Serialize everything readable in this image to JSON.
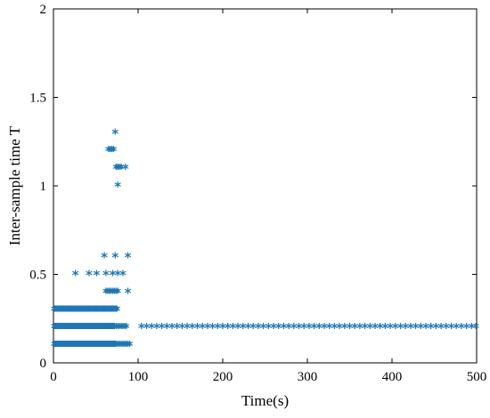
{
  "chart_data": {
    "type": "scatter",
    "xlabel": "Time(s)",
    "ylabel": "Inter-sample time T",
    "xlim": [
      0,
      500
    ],
    "ylim": [
      0,
      2
    ],
    "xticks": [
      "0",
      "100",
      "200",
      "300",
      "400",
      "500"
    ],
    "yticks": [
      "0",
      "0.5",
      "1",
      "1.5",
      "2"
    ],
    "grid": false,
    "marker": "*",
    "color": "#1f77b4",
    "series": [
      {
        "points": [
          [
            1,
            0.1
          ],
          [
            2,
            0.1
          ],
          [
            3,
            0.1
          ],
          [
            4,
            0.1
          ],
          [
            5,
            0.1
          ],
          [
            6,
            0.1
          ],
          [
            7,
            0.1
          ],
          [
            8,
            0.1
          ],
          [
            9,
            0.1
          ],
          [
            10,
            0.1
          ],
          [
            11,
            0.1
          ],
          [
            12,
            0.1
          ],
          [
            13,
            0.1
          ],
          [
            14,
            0.1
          ],
          [
            15,
            0.1
          ],
          [
            16,
            0.1
          ],
          [
            17,
            0.1
          ],
          [
            18,
            0.1
          ],
          [
            19,
            0.1
          ],
          [
            20,
            0.1
          ],
          [
            21,
            0.1
          ],
          [
            22,
            0.1
          ],
          [
            23,
            0.1
          ],
          [
            24,
            0.1
          ],
          [
            25,
            0.1
          ],
          [
            26,
            0.1
          ],
          [
            27,
            0.1
          ],
          [
            28,
            0.1
          ],
          [
            29,
            0.1
          ],
          [
            30,
            0.1
          ],
          [
            31,
            0.1
          ],
          [
            32,
            0.1
          ],
          [
            33,
            0.1
          ],
          [
            34,
            0.1
          ],
          [
            35,
            0.1
          ],
          [
            36,
            0.1
          ],
          [
            37,
            0.1
          ],
          [
            38,
            0.1
          ],
          [
            39,
            0.1
          ],
          [
            40,
            0.1
          ],
          [
            41,
            0.1
          ],
          [
            42,
            0.1
          ],
          [
            43,
            0.1
          ],
          [
            44,
            0.1
          ],
          [
            45,
            0.1
          ],
          [
            46,
            0.1
          ],
          [
            47,
            0.1
          ],
          [
            48,
            0.1
          ],
          [
            49,
            0.1
          ],
          [
            50,
            0.1
          ],
          [
            51,
            0.1
          ],
          [
            52,
            0.1
          ],
          [
            53,
            0.1
          ],
          [
            54,
            0.1
          ],
          [
            55,
            0.1
          ],
          [
            56,
            0.1
          ],
          [
            57,
            0.1
          ],
          [
            58,
            0.1
          ],
          [
            59,
            0.1
          ],
          [
            60,
            0.1
          ],
          [
            61,
            0.1
          ],
          [
            62,
            0.1
          ],
          [
            63,
            0.1
          ],
          [
            64,
            0.1
          ],
          [
            65,
            0.1
          ],
          [
            66,
            0.1
          ],
          [
            67,
            0.1
          ],
          [
            68,
            0.1
          ],
          [
            69,
            0.1
          ],
          [
            70,
            0.1
          ],
          [
            71,
            0.1
          ],
          [
            72,
            0.1
          ],
          [
            73,
            0.1
          ],
          [
            74,
            0.1
          ],
          [
            76,
            0.1
          ],
          [
            78,
            0.1
          ],
          [
            80,
            0.1
          ],
          [
            82,
            0.1
          ],
          [
            84,
            0.1
          ],
          [
            86,
            0.1
          ],
          [
            88,
            0.1
          ],
          [
            90,
            0.1
          ],
          [
            1,
            0.2
          ],
          [
            2,
            0.2
          ],
          [
            3,
            0.2
          ],
          [
            4,
            0.2
          ],
          [
            5,
            0.2
          ],
          [
            6,
            0.2
          ],
          [
            7,
            0.2
          ],
          [
            8,
            0.2
          ],
          [
            9,
            0.2
          ],
          [
            10,
            0.2
          ],
          [
            11,
            0.2
          ],
          [
            12,
            0.2
          ],
          [
            13,
            0.2
          ],
          [
            14,
            0.2
          ],
          [
            15,
            0.2
          ],
          [
            16,
            0.2
          ],
          [
            17,
            0.2
          ],
          [
            18,
            0.2
          ],
          [
            19,
            0.2
          ],
          [
            20,
            0.2
          ],
          [
            21,
            0.2
          ],
          [
            22,
            0.2
          ],
          [
            23,
            0.2
          ],
          [
            24,
            0.2
          ],
          [
            25,
            0.2
          ],
          [
            26,
            0.2
          ],
          [
            27,
            0.2
          ],
          [
            28,
            0.2
          ],
          [
            29,
            0.2
          ],
          [
            30,
            0.2
          ],
          [
            31,
            0.2
          ],
          [
            32,
            0.2
          ],
          [
            33,
            0.2
          ],
          [
            34,
            0.2
          ],
          [
            35,
            0.2
          ],
          [
            36,
            0.2
          ],
          [
            37,
            0.2
          ],
          [
            38,
            0.2
          ],
          [
            39,
            0.2
          ],
          [
            40,
            0.2
          ],
          [
            41,
            0.2
          ],
          [
            42,
            0.2
          ],
          [
            43,
            0.2
          ],
          [
            44,
            0.2
          ],
          [
            45,
            0.2
          ],
          [
            46,
            0.2
          ],
          [
            47,
            0.2
          ],
          [
            48,
            0.2
          ],
          [
            49,
            0.2
          ],
          [
            50,
            0.2
          ],
          [
            51,
            0.2
          ],
          [
            52,
            0.2
          ],
          [
            53,
            0.2
          ],
          [
            54,
            0.2
          ],
          [
            55,
            0.2
          ],
          [
            56,
            0.2
          ],
          [
            57,
            0.2
          ],
          [
            58,
            0.2
          ],
          [
            59,
            0.2
          ],
          [
            60,
            0.2
          ],
          [
            61,
            0.2
          ],
          [
            62,
            0.2
          ],
          [
            63,
            0.2
          ],
          [
            64,
            0.2
          ],
          [
            65,
            0.2
          ],
          [
            66,
            0.2
          ],
          [
            67,
            0.2
          ],
          [
            68,
            0.2
          ],
          [
            69,
            0.2
          ],
          [
            70,
            0.2
          ],
          [
            71,
            0.2
          ],
          [
            72,
            0.2
          ],
          [
            74,
            0.2
          ],
          [
            76,
            0.2
          ],
          [
            78,
            0.2
          ],
          [
            80,
            0.2
          ],
          [
            82,
            0.2
          ],
          [
            84,
            0.2
          ],
          [
            86,
            0.2
          ],
          [
            1,
            0.3
          ],
          [
            2,
            0.3
          ],
          [
            3,
            0.3
          ],
          [
            4,
            0.3
          ],
          [
            5,
            0.3
          ],
          [
            6,
            0.3
          ],
          [
            7,
            0.3
          ],
          [
            8,
            0.3
          ],
          [
            9,
            0.3
          ],
          [
            10,
            0.3
          ],
          [
            11,
            0.3
          ],
          [
            12,
            0.3
          ],
          [
            13,
            0.3
          ],
          [
            14,
            0.3
          ],
          [
            15,
            0.3
          ],
          [
            16,
            0.3
          ],
          [
            17,
            0.3
          ],
          [
            18,
            0.3
          ],
          [
            19,
            0.3
          ],
          [
            20,
            0.3
          ],
          [
            21,
            0.3
          ],
          [
            22,
            0.3
          ],
          [
            23,
            0.3
          ],
          [
            24,
            0.3
          ],
          [
            25,
            0.3
          ],
          [
            26,
            0.3
          ],
          [
            27,
            0.3
          ],
          [
            28,
            0.3
          ],
          [
            29,
            0.3
          ],
          [
            30,
            0.3
          ],
          [
            31,
            0.3
          ],
          [
            32,
            0.3
          ],
          [
            33,
            0.3
          ],
          [
            34,
            0.3
          ],
          [
            35,
            0.3
          ],
          [
            36,
            0.3
          ],
          [
            37,
            0.3
          ],
          [
            38,
            0.3
          ],
          [
            39,
            0.3
          ],
          [
            40,
            0.3
          ],
          [
            41,
            0.3
          ],
          [
            42,
            0.3
          ],
          [
            43,
            0.3
          ],
          [
            44,
            0.3
          ],
          [
            45,
            0.3
          ],
          [
            46,
            0.3
          ],
          [
            47,
            0.3
          ],
          [
            48,
            0.3
          ],
          [
            49,
            0.3
          ],
          [
            50,
            0.3
          ],
          [
            51,
            0.3
          ],
          [
            52,
            0.3
          ],
          [
            53,
            0.3
          ],
          [
            54,
            0.3
          ],
          [
            55,
            0.3
          ],
          [
            56,
            0.3
          ],
          [
            57,
            0.3
          ],
          [
            58,
            0.3
          ],
          [
            59,
            0.3
          ],
          [
            60,
            0.3
          ],
          [
            61,
            0.3
          ],
          [
            62,
            0.3
          ],
          [
            63,
            0.3
          ],
          [
            64,
            0.3
          ],
          [
            65,
            0.3
          ],
          [
            66,
            0.3
          ],
          [
            67,
            0.3
          ],
          [
            68,
            0.3
          ],
          [
            69,
            0.3
          ],
          [
            70,
            0.3
          ],
          [
            71,
            0.3
          ],
          [
            72,
            0.3
          ],
          [
            73,
            0.3
          ],
          [
            74,
            0.3
          ],
          [
            75,
            0.3
          ],
          [
            62,
            0.4
          ],
          [
            64,
            0.4
          ],
          [
            66,
            0.4
          ],
          [
            68,
            0.4
          ],
          [
            70,
            0.4
          ],
          [
            72,
            0.4
          ],
          [
            74,
            0.4
          ],
          [
            76,
            0.4
          ],
          [
            88,
            0.4
          ],
          [
            26,
            0.5
          ],
          [
            42,
            0.5
          ],
          [
            51,
            0.5
          ],
          [
            62,
            0.5
          ],
          [
            70,
            0.5
          ],
          [
            76,
            0.5
          ],
          [
            82,
            0.5
          ],
          [
            60,
            0.6
          ],
          [
            73,
            0.6
          ],
          [
            88,
            0.6
          ],
          [
            65,
            1.2
          ],
          [
            67,
            1.2
          ],
          [
            69,
            1.2
          ],
          [
            71,
            1.2
          ],
          [
            74,
            1.1
          ],
          [
            76,
            1.1
          ],
          [
            78,
            1.1
          ],
          [
            80,
            1.1
          ],
          [
            85,
            1.1
          ],
          [
            76,
            1.0
          ],
          [
            73,
            1.3
          ],
          [
            104,
            0.2
          ],
          [
            110,
            0.2
          ],
          [
            116,
            0.2
          ],
          [
            122,
            0.2
          ],
          [
            128,
            0.2
          ],
          [
            134,
            0.2
          ],
          [
            140,
            0.2
          ],
          [
            146,
            0.2
          ],
          [
            152,
            0.2
          ],
          [
            158,
            0.2
          ],
          [
            164,
            0.2
          ],
          [
            170,
            0.2
          ],
          [
            176,
            0.2
          ],
          [
            182,
            0.2
          ],
          [
            188,
            0.2
          ],
          [
            194,
            0.2
          ],
          [
            200,
            0.2
          ],
          [
            206,
            0.2
          ],
          [
            212,
            0.2
          ],
          [
            218,
            0.2
          ],
          [
            224,
            0.2
          ],
          [
            230,
            0.2
          ],
          [
            236,
            0.2
          ],
          [
            242,
            0.2
          ],
          [
            248,
            0.2
          ],
          [
            254,
            0.2
          ],
          [
            260,
            0.2
          ],
          [
            266,
            0.2
          ],
          [
            272,
            0.2
          ],
          [
            278,
            0.2
          ],
          [
            284,
            0.2
          ],
          [
            290,
            0.2
          ],
          [
            296,
            0.2
          ],
          [
            302,
            0.2
          ],
          [
            308,
            0.2
          ],
          [
            314,
            0.2
          ],
          [
            320,
            0.2
          ],
          [
            326,
            0.2
          ],
          [
            332,
            0.2
          ],
          [
            338,
            0.2
          ],
          [
            344,
            0.2
          ],
          [
            350,
            0.2
          ],
          [
            356,
            0.2
          ],
          [
            362,
            0.2
          ],
          [
            368,
            0.2
          ],
          [
            374,
            0.2
          ],
          [
            380,
            0.2
          ],
          [
            386,
            0.2
          ],
          [
            392,
            0.2
          ],
          [
            398,
            0.2
          ],
          [
            404,
            0.2
          ],
          [
            410,
            0.2
          ],
          [
            416,
            0.2
          ],
          [
            422,
            0.2
          ],
          [
            428,
            0.2
          ],
          [
            434,
            0.2
          ],
          [
            440,
            0.2
          ],
          [
            446,
            0.2
          ],
          [
            452,
            0.2
          ],
          [
            458,
            0.2
          ],
          [
            464,
            0.2
          ],
          [
            470,
            0.2
          ],
          [
            476,
            0.2
          ],
          [
            482,
            0.2
          ],
          [
            488,
            0.2
          ],
          [
            494,
            0.2
          ],
          [
            499,
            0.2
          ]
        ]
      }
    ]
  }
}
